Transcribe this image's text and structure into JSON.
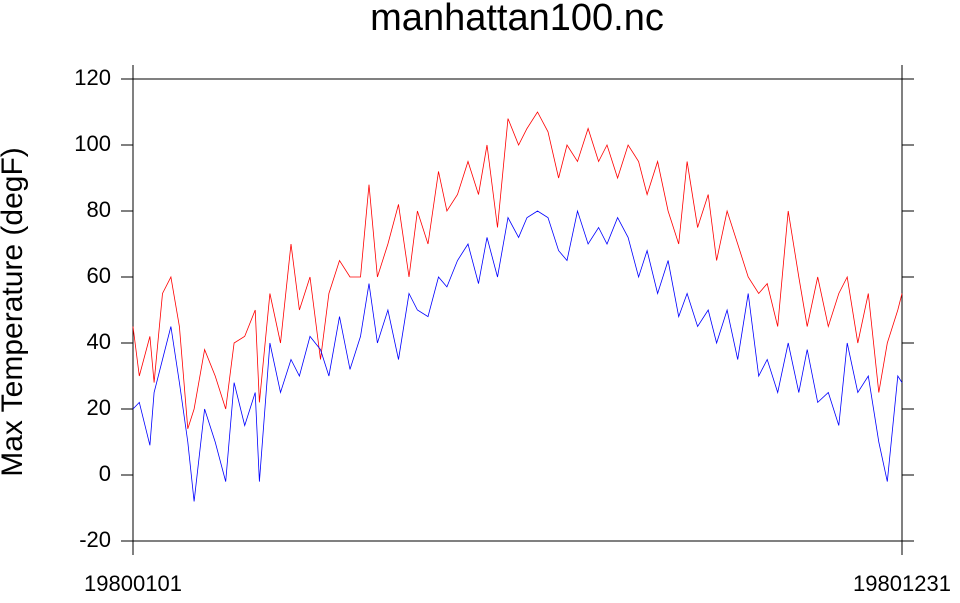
{
  "chart_data": {
    "type": "line",
    "title": "manhattan100.nc",
    "y_label": "Max Temperature (degF)",
    "x": [
      0,
      3,
      8,
      10,
      14,
      18,
      22,
      26,
      29,
      34,
      39,
      44,
      48,
      53,
      58,
      60,
      65,
      70,
      75,
      79,
      84,
      89,
      93,
      98,
      103,
      108,
      112,
      116,
      121,
      126,
      131,
      135,
      140,
      145,
      149,
      154,
      159,
      164,
      168,
      173,
      178,
      183,
      187,
      192,
      197,
      202,
      206,
      211,
      216,
      221,
      225,
      230,
      235,
      240,
      244,
      249,
      254,
      259,
      263,
      268,
      273,
      277,
      282,
      287,
      292,
      297,
      301,
      306,
      311,
      316,
      320,
      325,
      330,
      335,
      339,
      344,
      349,
      354,
      358,
      363,
      365
    ],
    "series": [
      {
        "color": "#ff0000",
        "values": [
          45,
          30,
          42,
          28,
          55,
          60,
          45,
          14,
          20,
          38,
          30,
          20,
          40,
          42,
          50,
          22,
          55,
          40,
          70,
          50,
          60,
          35,
          55,
          65,
          60,
          60,
          88,
          60,
          70,
          82,
          60,
          80,
          70,
          92,
          80,
          85,
          95,
          85,
          100,
          75,
          108,
          100,
          105,
          110,
          104,
          90,
          100,
          95,
          105,
          95,
          100,
          90,
          100,
          95,
          85,
          95,
          80,
          70,
          95,
          75,
          85,
          65,
          80,
          70,
          60,
          55,
          58,
          45,
          80,
          60,
          45,
          60,
          45,
          55,
          60,
          40,
          55,
          25,
          40,
          50,
          55
        ]
      },
      {
        "color": "#0000ff",
        "values": [
          20,
          22,
          9,
          25,
          35,
          45,
          28,
          10,
          -8,
          20,
          10,
          -2,
          28,
          15,
          25,
          -2,
          40,
          25,
          35,
          30,
          42,
          38,
          30,
          48,
          32,
          42,
          58,
          40,
          50,
          35,
          55,
          50,
          48,
          60,
          57,
          65,
          70,
          58,
          72,
          60,
          78,
          72,
          78,
          80,
          78,
          68,
          65,
          80,
          70,
          75,
          70,
          78,
          72,
          60,
          68,
          55,
          65,
          48,
          55,
          45,
          50,
          40,
          50,
          35,
          55,
          30,
          35,
          25,
          40,
          25,
          38,
          22,
          25,
          15,
          40,
          25,
          30,
          10,
          -2,
          30,
          28
        ]
      }
    ],
    "xlim": [
      0,
      365
    ],
    "xticks": [
      {
        "value": 0,
        "label": "19800101"
      },
      {
        "value": 365,
        "label": "19801231"
      }
    ],
    "ylim": [
      -20,
      120
    ],
    "yticks": [
      -20,
      0,
      20,
      40,
      60,
      80,
      100,
      120
    ]
  }
}
